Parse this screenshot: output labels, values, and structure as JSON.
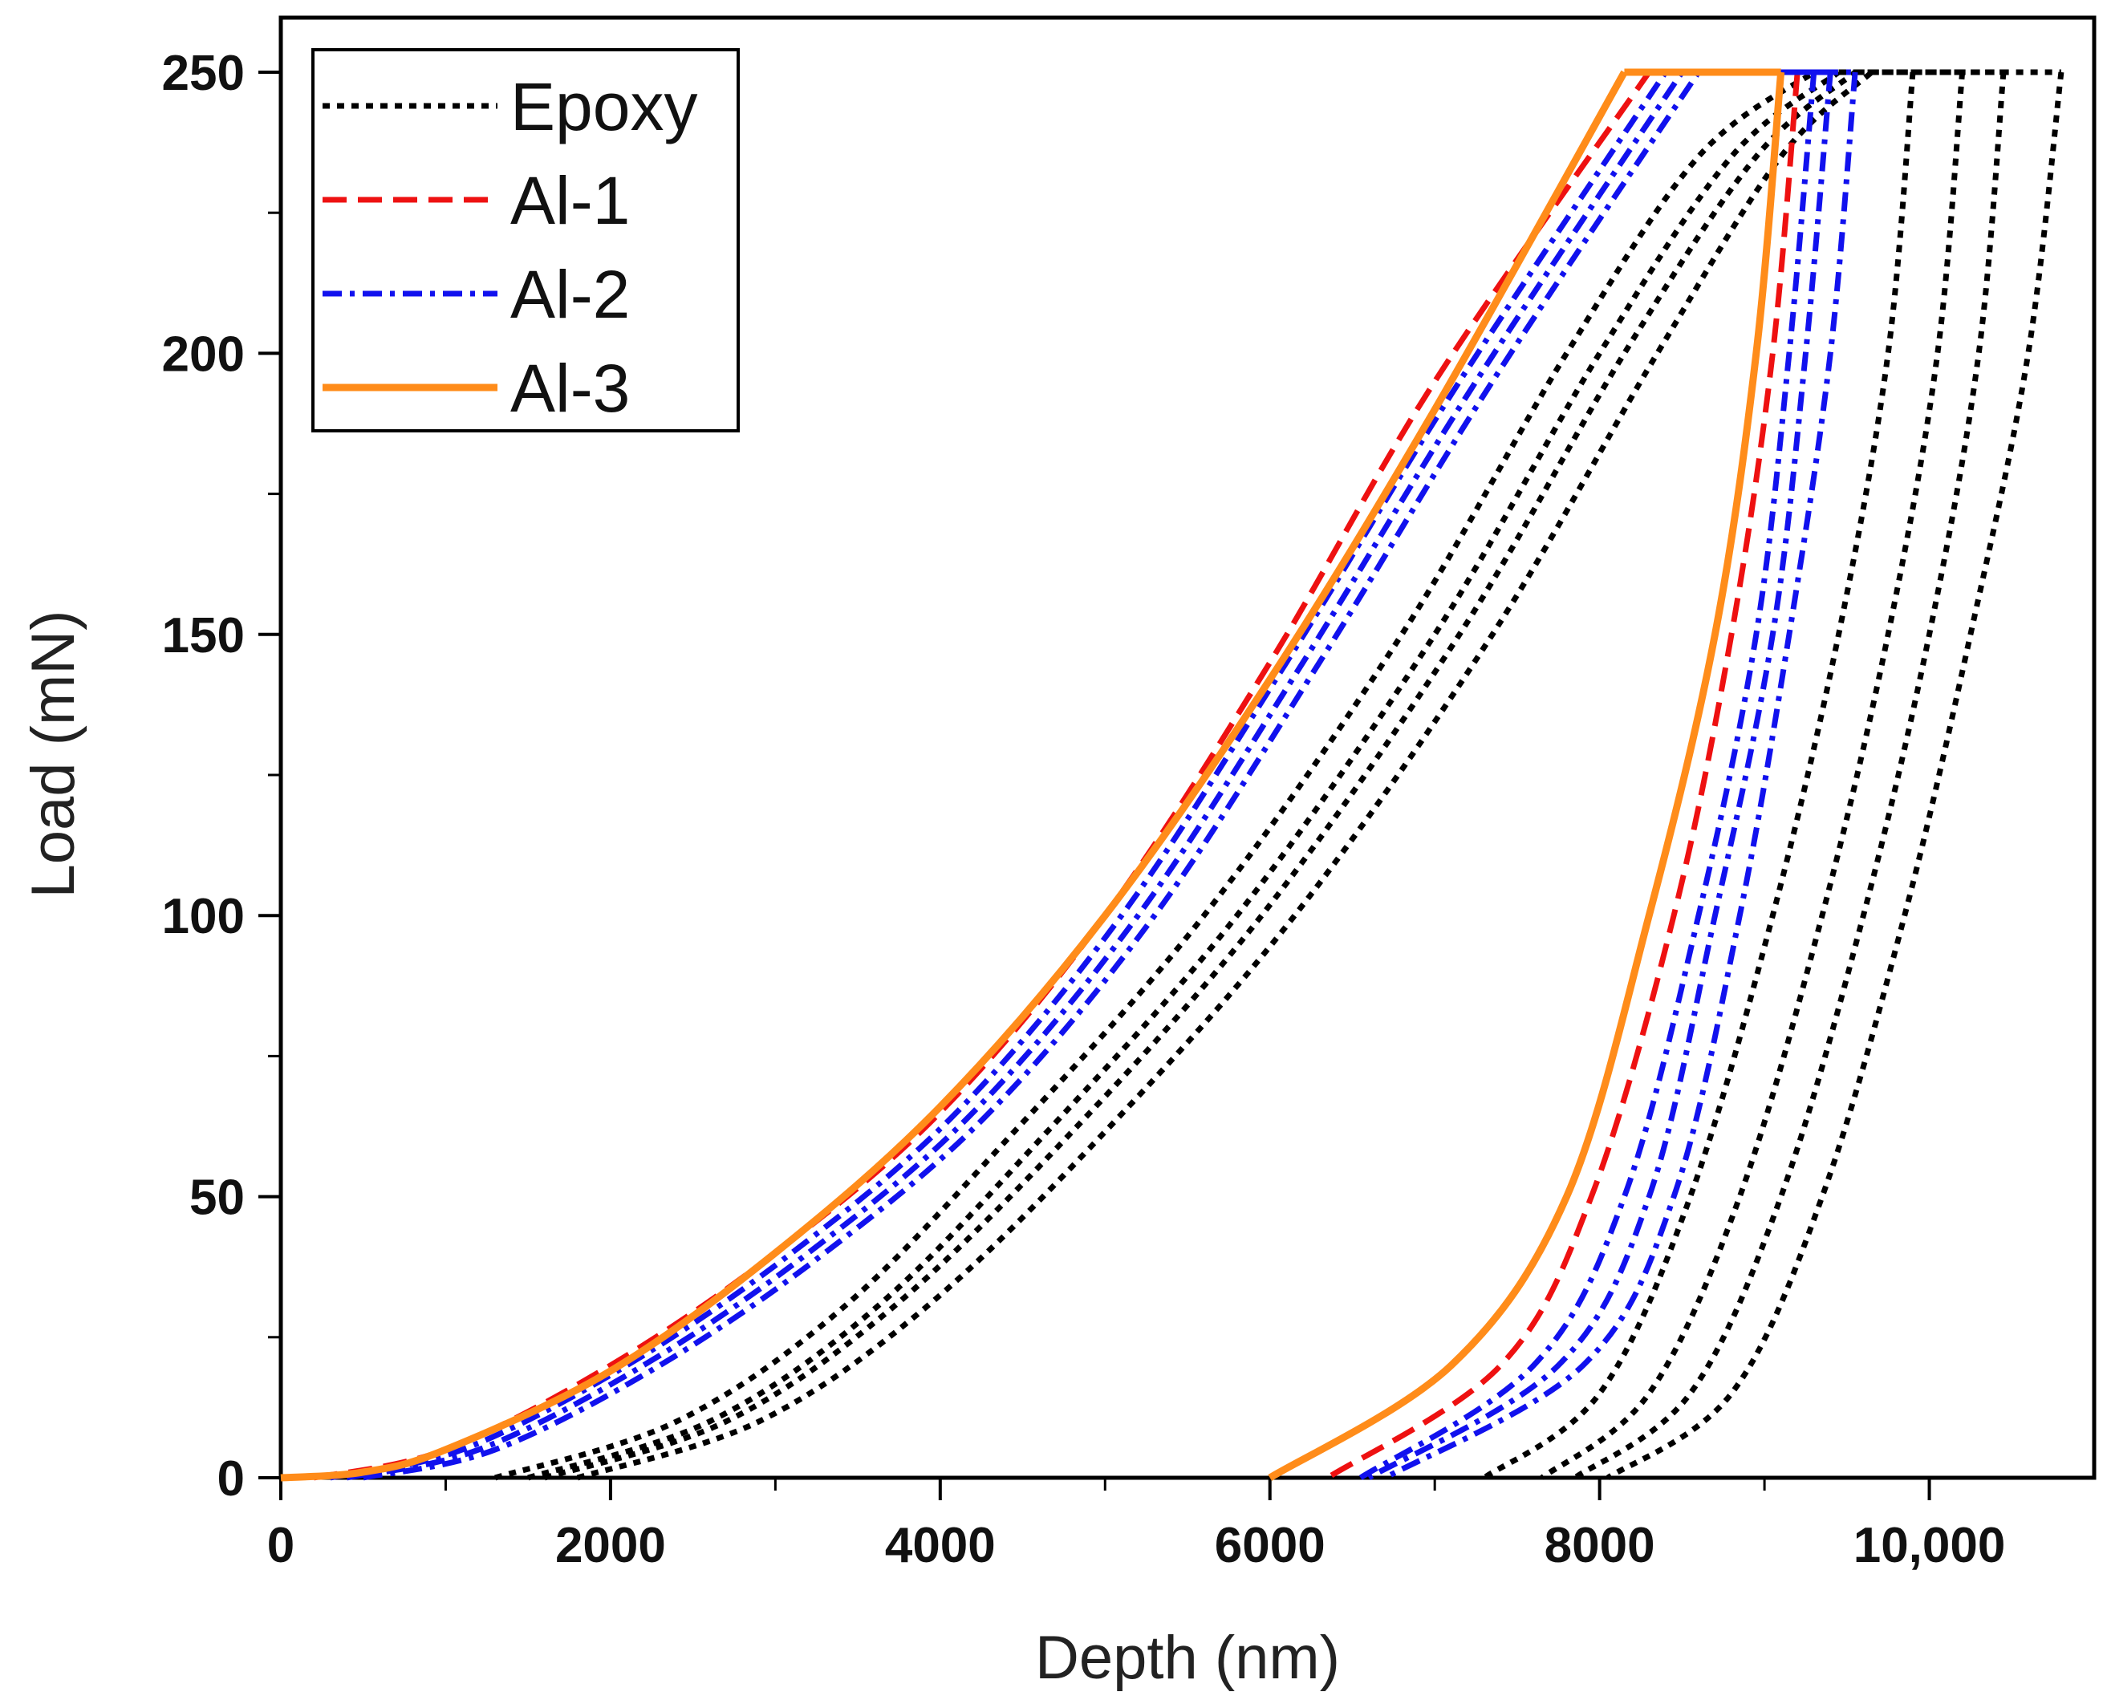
{
  "chart_data": {
    "type": "line",
    "title": "",
    "xlabel": "Depth (nm)",
    "ylabel": "Load (mN)",
    "xlim": [
      0,
      11000
    ],
    "ylim": [
      0,
      250
    ],
    "xticks": [
      0,
      2000,
      4000,
      6000,
      8000,
      10000
    ],
    "xtick_labels": [
      "0",
      "2000",
      "4000",
      "6000",
      "8000",
      "10,000"
    ],
    "yticks": [
      0,
      50,
      100,
      150,
      200,
      250
    ],
    "ytick_labels": [
      "0",
      "50",
      "100",
      "150",
      "200",
      "250"
    ],
    "legend_position": "top-left",
    "series": [
      {
        "name": "Epoxy",
        "color": "#000000",
        "style": "dotted",
        "curves": [
          {
            "loading": [
              [
                1300,
                0
              ],
              [
                2400,
                10
              ],
              [
                3400,
                30
              ],
              [
                4400,
                60
              ],
              [
                5600,
                100
              ],
              [
                6800,
                150
              ],
              [
                7800,
                200
              ],
              [
                8600,
                235
              ],
              [
                9300,
                250
              ]
            ],
            "hold": [
              [
                9300,
                250
              ],
              [
                9900,
                250
              ]
            ],
            "unloading": [
              [
                9900,
                250
              ],
              [
                9750,
                200
              ],
              [
                9450,
                150
              ],
              [
                9050,
                100
              ],
              [
                8550,
                50
              ],
              [
                8000,
                15
              ],
              [
                7300,
                0
              ]
            ]
          },
          {
            "loading": [
              [
                1500,
                0
              ],
              [
                2600,
                10
              ],
              [
                3600,
                30
              ],
              [
                4600,
                60
              ],
              [
                5800,
                100
              ],
              [
                7000,
                150
              ],
              [
                8000,
                200
              ],
              [
                8800,
                235
              ],
              [
                9450,
                250
              ]
            ],
            "hold": [
              [
                9450,
                250
              ],
              [
                10200,
                250
              ]
            ],
            "unloading": [
              [
                10200,
                250
              ],
              [
                10050,
                200
              ],
              [
                9750,
                150
              ],
              [
                9350,
                100
              ],
              [
                8850,
                50
              ],
              [
                8300,
                15
              ],
              [
                7650,
                0
              ]
            ]
          },
          {
            "loading": [
              [
                1600,
                0
              ],
              [
                2700,
                10
              ],
              [
                3700,
                30
              ],
              [
                4750,
                60
              ],
              [
                5950,
                100
              ],
              [
                7150,
                150
              ],
              [
                8150,
                200
              ],
              [
                8950,
                235
              ],
              [
                9550,
                250
              ]
            ],
            "hold": [
              [
                9550,
                250
              ],
              [
                10450,
                250
              ]
            ],
            "unloading": [
              [
                10450,
                250
              ],
              [
                10300,
                200
              ],
              [
                10000,
                150
              ],
              [
                9600,
                100
              ],
              [
                9100,
                50
              ],
              [
                8550,
                15
              ],
              [
                7850,
                0
              ]
            ]
          },
          {
            "loading": [
              [
                1800,
                0
              ],
              [
                2900,
                10
              ],
              [
                3900,
                30
              ],
              [
                4950,
                60
              ],
              [
                6150,
                100
              ],
              [
                7350,
                150
              ],
              [
                8350,
                200
              ],
              [
                9100,
                235
              ],
              [
                9650,
                250
              ]
            ],
            "hold": [
              [
                9650,
                250
              ],
              [
                10800,
                250
              ]
            ],
            "unloading": [
              [
                10800,
                250
              ],
              [
                10600,
                200
              ],
              [
                10250,
                150
              ],
              [
                9850,
                100
              ],
              [
                9350,
                50
              ],
              [
                8800,
                15
              ],
              [
                8050,
                0
              ]
            ]
          }
        ]
      },
      {
        "name": "Al-1",
        "color": "#ee1111",
        "style": "dashed",
        "curves": [
          {
            "loading": [
              [
                200,
                0
              ],
              [
                1000,
                5
              ],
              [
                2000,
                20
              ],
              [
                3000,
                40
              ],
              [
                4000,
                65
              ],
              [
                5000,
                100
              ],
              [
                6000,
                145
              ],
              [
                7000,
                195
              ],
              [
                8300,
                250
              ]
            ],
            "hold": [
              [
                8300,
                250
              ],
              [
                9200,
                250
              ]
            ],
            "unloading": [
              [
                9200,
                250
              ],
              [
                9050,
                200
              ],
              [
                8800,
                150
              ],
              [
                8450,
                100
              ],
              [
                7950,
                50
              ],
              [
                7400,
                20
              ],
              [
                6350,
                0
              ]
            ]
          }
        ]
      },
      {
        "name": "Al-2",
        "color": "#1111ee",
        "style": "dashdot",
        "curves": [
          {
            "loading": [
              [
                300,
                0
              ],
              [
                1100,
                5
              ],
              [
                2100,
                20
              ],
              [
                3100,
                40
              ],
              [
                4100,
                65
              ],
              [
                5100,
                100
              ],
              [
                6100,
                145
              ],
              [
                7150,
                195
              ],
              [
                8400,
                250
              ]
            ],
            "hold": [
              [
                8400,
                250
              ],
              [
                9300,
                250
              ]
            ],
            "unloading": [
              [
                9300,
                250
              ],
              [
                9150,
                200
              ],
              [
                8950,
                150
              ],
              [
                8600,
                100
              ],
              [
                8150,
                50
              ],
              [
                7600,
                20
              ],
              [
                6550,
                0
              ]
            ]
          },
          {
            "loading": [
              [
                400,
                0
              ],
              [
                1200,
                5
              ],
              [
                2200,
                20
              ],
              [
                3200,
                40
              ],
              [
                4200,
                65
              ],
              [
                5200,
                100
              ],
              [
                6200,
                145
              ],
              [
                7250,
                195
              ],
              [
                8500,
                250
              ]
            ],
            "hold": [
              [
                8500,
                250
              ],
              [
                9400,
                250
              ]
            ],
            "unloading": [
              [
                9400,
                250
              ],
              [
                9250,
                200
              ],
              [
                9050,
                150
              ],
              [
                8700,
                100
              ],
              [
                8300,
                50
              ],
              [
                7750,
                20
              ],
              [
                6600,
                0
              ]
            ]
          },
          {
            "loading": [
              [
                500,
                0
              ],
              [
                1300,
                5
              ],
              [
                2300,
                20
              ],
              [
                3300,
                40
              ],
              [
                4300,
                65
              ],
              [
                5300,
                100
              ],
              [
                6300,
                145
              ],
              [
                7350,
                195
              ],
              [
                8600,
                250
              ]
            ],
            "hold": [
              [
                8600,
                250
              ],
              [
                9550,
                250
              ]
            ],
            "unloading": [
              [
                9550,
                250
              ],
              [
                9400,
                200
              ],
              [
                9150,
                150
              ],
              [
                8850,
                100
              ],
              [
                8450,
                50
              ],
              [
                7900,
                20
              ],
              [
                6700,
                0
              ]
            ]
          }
        ]
      },
      {
        "name": "Al-3",
        "color": "#ff8c1a",
        "style": "solid",
        "curves": [
          {
            "loading": [
              [
                0,
                0
              ],
              [
                500,
                1
              ],
              [
                1000,
                5
              ],
              [
                2000,
                19
              ],
              [
                3000,
                40
              ],
              [
                4000,
                66
              ],
              [
                5000,
                100
              ],
              [
                6000,
                142
              ],
              [
                7000,
                190
              ],
              [
                8150,
                250
              ]
            ],
            "hold": [
              [
                8150,
                250
              ],
              [
                9100,
                250
              ]
            ],
            "unloading": [
              [
                9100,
                250
              ],
              [
                8950,
                200
              ],
              [
                8700,
                150
              ],
              [
                8300,
                100
              ],
              [
                7800,
                50
              ],
              [
                7100,
                20
              ],
              [
                6000,
                0
              ]
            ]
          }
        ]
      }
    ]
  }
}
